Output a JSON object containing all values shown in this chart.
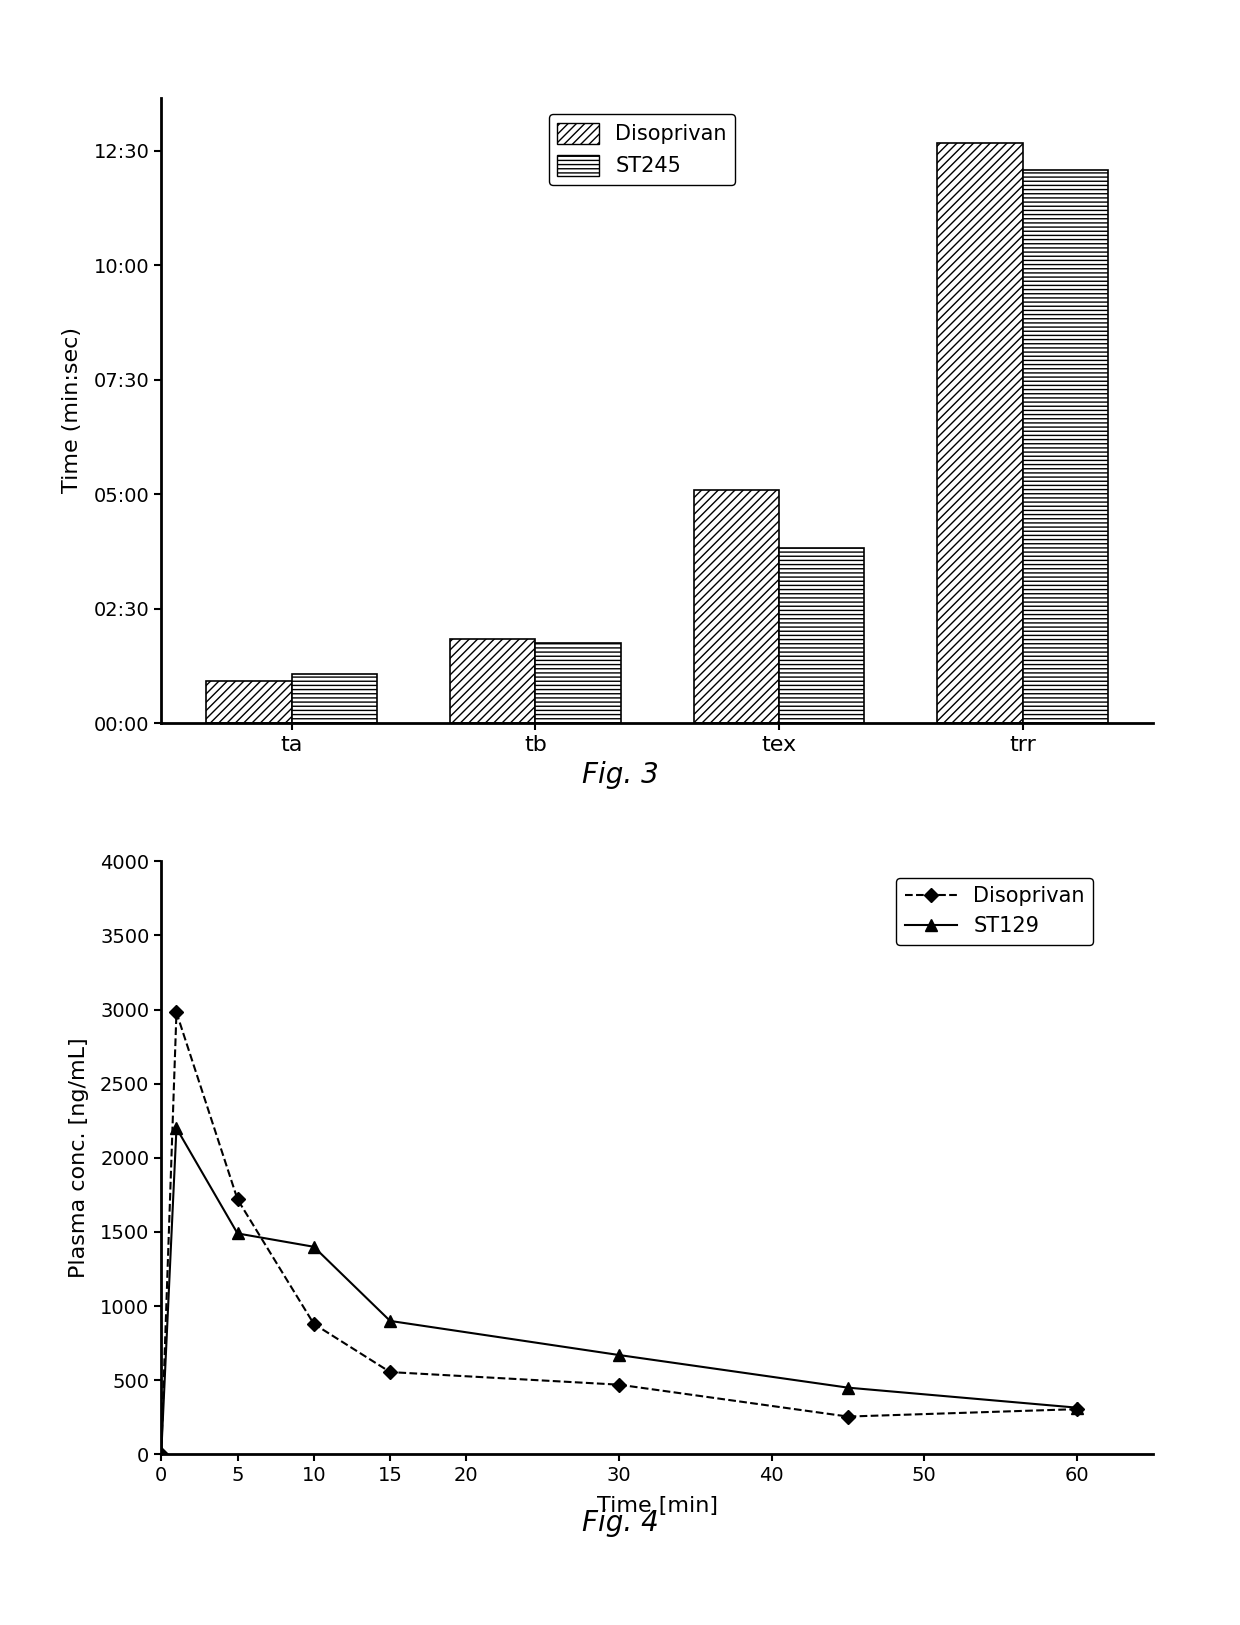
{
  "fig3": {
    "categories": [
      "ta",
      "tb",
      "tex",
      "trr"
    ],
    "disoprivan_seconds": [
      55,
      110,
      305,
      760
    ],
    "st245_seconds": [
      65,
      105,
      230,
      725
    ],
    "ylabel": "Time (min:sec)",
    "ytick_seconds": [
      0,
      150,
      300,
      450,
      600,
      750
    ],
    "ytick_labels": [
      "00:00",
      "02:30",
      "05:00",
      "07:30",
      "10:00",
      "12:30"
    ],
    "ylim_max": 820,
    "bar_width": 0.35,
    "hatch_disoprivan": "////",
    "hatch_st245": "----",
    "legend_disoprivan": "Disoprivan",
    "legend_st245": "ST245",
    "bar_facecolor": "white",
    "bar_edgecolor": "black"
  },
  "fig4": {
    "disoprivan_x": [
      0,
      1,
      5,
      10,
      15,
      30,
      45,
      60
    ],
    "disoprivan_y": [
      0,
      2980,
      1720,
      880,
      555,
      470,
      255,
      305
    ],
    "st129_x": [
      0,
      1,
      5,
      10,
      15,
      30,
      45,
      60
    ],
    "st129_y": [
      0,
      2200,
      1490,
      1400,
      900,
      670,
      450,
      315
    ],
    "xlabel": "Time [min]",
    "ylabel": "Plasma conc. [ng/mL]",
    "ylim": [
      0,
      4000
    ],
    "xlim": [
      0,
      65
    ],
    "yticks": [
      0,
      500,
      1000,
      1500,
      2000,
      2500,
      3000,
      3500,
      4000
    ],
    "xticks": [
      0,
      5,
      10,
      15,
      20,
      30,
      40,
      50,
      60
    ],
    "legend_disoprivan": "Disoprivan",
    "legend_st129": "ST129",
    "caption": "Fig. 4"
  },
  "fig3_caption": "Fig. 3",
  "fig4_caption": "Fig. 4"
}
